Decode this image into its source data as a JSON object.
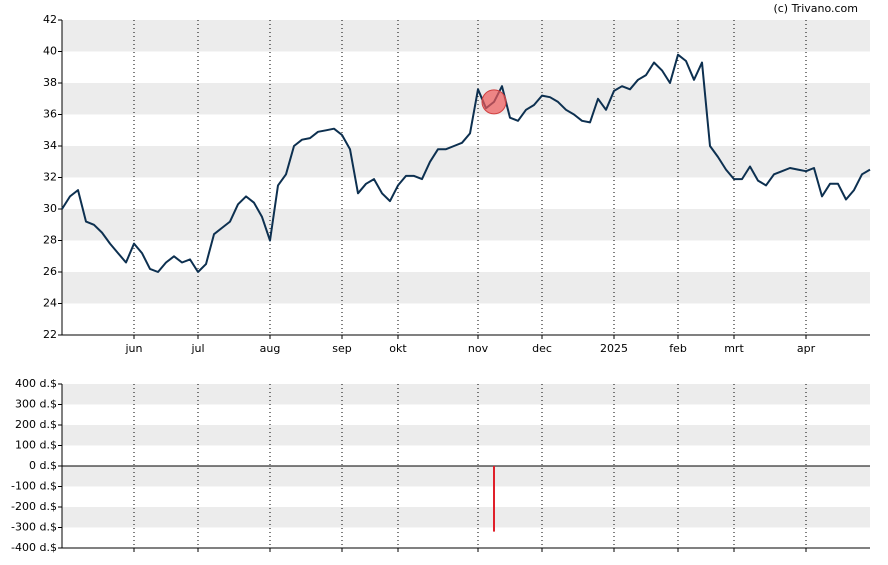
{
  "chart_data": [
    {
      "type": "line",
      "credit": "(c) Trivano.com",
      "color": "#0d3050",
      "event_color": "#f05a5a",
      "categories": [
        null,
        null,
        null,
        null,
        null,
        null,
        null,
        null,
        null,
        "jun",
        null,
        null,
        null,
        null,
        null,
        null,
        null,
        "jul",
        null,
        null,
        null,
        null,
        null,
        null,
        null,
        null,
        "aug",
        null,
        null,
        null,
        null,
        null,
        null,
        null,
        null,
        "sep",
        null,
        null,
        null,
        null,
        null,
        null,
        "okt",
        null,
        null,
        null,
        null,
        null,
        null,
        null,
        null,
        null,
        "nov",
        null,
        null,
        null,
        null,
        null,
        null,
        null,
        "dec",
        null,
        null,
        null,
        null,
        null,
        null,
        null,
        null,
        "2025",
        null,
        null,
        null,
        null,
        null,
        null,
        null,
        "feb",
        null,
        null,
        null,
        null,
        null,
        null,
        "mrt",
        null,
        null,
        null,
        null,
        null,
        null,
        null,
        null,
        "apr",
        null,
        null,
        null,
        null,
        null,
        null,
        null,
        null
      ],
      "values": [
        30.0,
        30.8,
        31.2,
        29.2,
        29.0,
        28.5,
        27.8,
        27.2,
        26.6,
        27.8,
        27.2,
        26.2,
        26.0,
        26.6,
        27.0,
        26.6,
        26.8,
        26.0,
        26.5,
        28.4,
        28.8,
        29.2,
        30.3,
        30.8,
        30.4,
        29.5,
        28.0,
        31.5,
        32.2,
        34.0,
        34.4,
        34.5,
        34.9,
        35.0,
        35.1,
        34.7,
        33.8,
        31.0,
        31.6,
        31.9,
        31.0,
        30.5,
        31.5,
        32.1,
        32.1,
        31.9,
        33.0,
        33.8,
        33.8,
        34.0,
        34.2,
        34.8,
        37.6,
        36.4,
        36.8,
        37.8,
        35.8,
        35.6,
        36.3,
        36.6,
        37.2,
        37.1,
        36.8,
        36.3,
        36.0,
        35.6,
        35.5,
        37.0,
        36.3,
        37.5,
        37.8,
        37.6,
        38.2,
        38.5,
        39.3,
        38.8,
        38.0,
        39.8,
        39.4,
        38.2,
        39.3,
        34.0,
        33.3,
        32.5,
        31.9,
        31.9,
        32.7,
        31.8,
        31.5,
        32.2,
        32.4,
        32.6,
        32.5,
        32.4,
        32.6,
        30.8,
        31.6,
        31.6,
        30.6,
        31.2,
        32.2,
        32.5
      ],
      "ylim": [
        22,
        42
      ],
      "yticks": [
        22,
        24,
        26,
        28,
        30,
        32,
        34,
        36,
        38,
        40,
        42
      ],
      "grid": true
    },
    {
      "type": "bar",
      "color": "#e0202a",
      "values": [
        null,
        null,
        null,
        null,
        null,
        null,
        null,
        null,
        null,
        null,
        null,
        null,
        null,
        null,
        null,
        null,
        null,
        null,
        null,
        null,
        null,
        null,
        null,
        null,
        null,
        null,
        null,
        null,
        null,
        null,
        null,
        null,
        null,
        null,
        null,
        null,
        null,
        null,
        null,
        null,
        null,
        null,
        null,
        null,
        null,
        null,
        null,
        null,
        null,
        null,
        null,
        null,
        null,
        null,
        -320,
        null,
        null,
        null,
        null,
        null,
        null,
        null,
        null,
        null,
        null,
        null,
        null,
        null,
        null,
        null,
        null,
        null,
        null,
        null,
        null,
        null,
        null,
        null,
        null,
        null,
        null,
        null,
        null,
        null,
        null,
        null,
        null,
        null,
        null,
        null,
        null,
        null,
        null,
        null,
        null,
        null,
        null,
        null,
        null,
        null,
        null,
        null
      ],
      "ylim": [
        -400,
        400
      ],
      "yticks": [
        {
          "value": -400,
          "label": "-400 d.$"
        },
        {
          "value": -300,
          "label": "-300 d.$"
        },
        {
          "value": -200,
          "label": "-200 d.$"
        },
        {
          "value": -100,
          "label": "-100 d.$"
        },
        {
          "value": 0,
          "label": "0 d.$"
        },
        {
          "value": 100,
          "label": "100 d.$"
        },
        {
          "value": 200,
          "label": "200 d.$"
        },
        {
          "value": 300,
          "label": "300 d.$"
        },
        {
          "value": 400,
          "label": "400 d.$"
        }
      ],
      "grid": true
    }
  ]
}
